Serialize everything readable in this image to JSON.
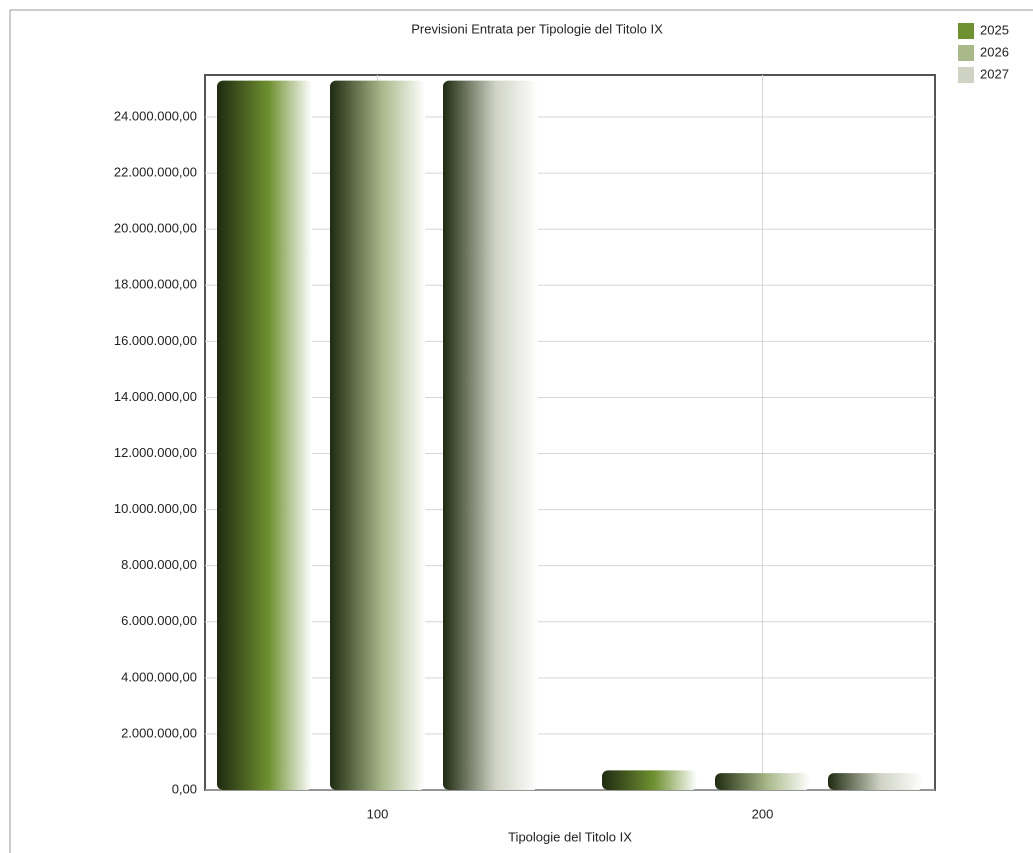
{
  "chart_data": {
    "type": "bar",
    "title": "Previsioni Entrata per Tipologie del Titolo IX",
    "x_label": "Tipologie del Titolo IX",
    "categories": [
      "100",
      "200"
    ],
    "series": [
      {
        "name": "2025",
        "color": "#6f9131",
        "values": [
          25300000,
          700000
        ]
      },
      {
        "name": "2026",
        "color": "#a9b98a",
        "values": [
          25300000,
          600000
        ]
      },
      {
        "name": "2027",
        "color": "#cfd3c4",
        "values": [
          25300000,
          600000
        ]
      }
    ],
    "ylim": [
      0,
      25500000
    ],
    "yticks": [
      {
        "value": 0,
        "label": "0,00"
      },
      {
        "value": 2000000,
        "label": "2.000.000,00"
      },
      {
        "value": 4000000,
        "label": "4.000.000,00"
      },
      {
        "value": 6000000,
        "label": "6.000.000,00"
      },
      {
        "value": 8000000,
        "label": "8.000.000,00"
      },
      {
        "value": 10000000,
        "label": "10.000.000,00"
      },
      {
        "value": 12000000,
        "label": "12.000.000,00"
      },
      {
        "value": 14000000,
        "label": "14.000.000,00"
      },
      {
        "value": 16000000,
        "label": "16.000.000,00"
      },
      {
        "value": 18000000,
        "label": "18.000.000,00"
      },
      {
        "value": 20000000,
        "label": "20.000.000,00"
      },
      {
        "value": 22000000,
        "label": "22.000.000,00"
      },
      {
        "value": 24000000,
        "label": "24.000.000,00"
      }
    ],
    "grid": true,
    "legend": "top-right"
  }
}
